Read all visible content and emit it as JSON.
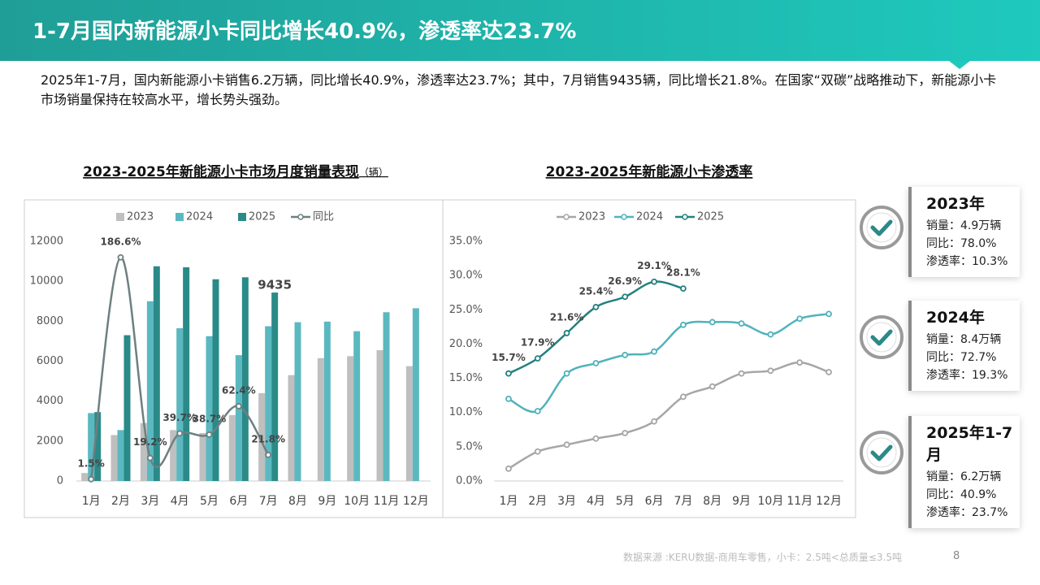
{
  "header": {
    "title": "1-7月国内新能源小卡同比增长40.9%，渗透率达23.7%"
  },
  "summary": "2025年1-7月，国内新能源小卡销售6.2万辆，同比增长40.9%，渗透率达23.7%；其中，7月销售9435辆，同比增长21.8%。在国家“双碳”战略推动下，新能源小卡市场销量保持在较高水平，增长势头强劲。",
  "chart_data": [
    {
      "type": "bar",
      "title": "2023-2025年新能源小卡市场月度销量表现",
      "subtitle": "（辆）",
      "categories": [
        "1月",
        "2月",
        "3月",
        "4月",
        "5月",
        "6月",
        "7月",
        "8月",
        "9月",
        "10月",
        "11月",
        "12月"
      ],
      "series": [
        {
          "name": "2023",
          "color": "#bfbfbf",
          "values": [
            400,
            2300,
            2900,
            2550,
            2400,
            3300,
            4400,
            5300,
            6150,
            6250,
            6550,
            5750
          ]
        },
        {
          "name": "2024",
          "color": "#5bb8c0",
          "values": [
            3400,
            2550,
            9000,
            7650,
            7250,
            6300,
            7750,
            7950,
            7980,
            7500,
            8450,
            8650
          ]
        },
        {
          "name": "2025",
          "color": "#2a8a88",
          "values": [
            3450,
            7300,
            10750,
            10700,
            10100,
            10200,
            9435,
            null,
            null,
            null,
            null,
            null
          ]
        },
        {
          "name": "同比",
          "color": "#6e7f80",
          "type": "line",
          "axis": "y2",
          "values": [
            1.5,
            186.6,
            19.2,
            39.7,
            38.7,
            62.4,
            21.8,
            null,
            null,
            null,
            null,
            null
          ],
          "value_labels": [
            "1.5%",
            "186.6%",
            "19.2%",
            "39.7%",
            "38.7%",
            "62.4%",
            "21.8%",
            null,
            null,
            null,
            null,
            null
          ]
        }
      ],
      "ylim": [
        0,
        12000
      ],
      "yticks": [
        0,
        2000,
        4000,
        6000,
        8000,
        10000,
        12000
      ],
      "y2lim": [
        0,
        200
      ],
      "grid": false
    },
    {
      "type": "line",
      "title": "2023-2025年新能源小卡渗透率",
      "categories": [
        "1月",
        "2月",
        "3月",
        "4月",
        "5月",
        "6月",
        "7月",
        "8月",
        "9月",
        "10月",
        "11月",
        "12月"
      ],
      "series": [
        {
          "name": "2023",
          "color": "#a6a6a6",
          "values": [
            1.8,
            4.3,
            5.3,
            6.2,
            7.0,
            8.7,
            12.3,
            13.8,
            15.7,
            16.1,
            17.3,
            15.9
          ]
        },
        {
          "name": "2024",
          "color": "#4fb3bb",
          "values": [
            12.0,
            10.2,
            15.7,
            17.2,
            18.4,
            18.9,
            22.8,
            23.2,
            23.0,
            21.4,
            23.7,
            24.4
          ]
        },
        {
          "name": "2025",
          "color": "#23817f",
          "values": [
            15.7,
            17.9,
            21.6,
            25.4,
            26.9,
            29.1,
            28.1,
            null,
            null,
            null,
            null,
            null
          ],
          "value_labels": [
            "15.7%",
            "17.9%",
            "21.6%",
            "25.4%",
            "26.9%",
            "29.1%",
            "28.1%",
            null,
            null,
            null,
            null,
            null
          ]
        }
      ],
      "ylim": [
        0,
        35
      ],
      "yticks": [
        {
          "value": 0,
          "label": "0.0%"
        },
        {
          "value": 5,
          "label": "5.0%"
        },
        {
          "value": 10,
          "label": "10.0%"
        },
        {
          "value": 15,
          "label": "15.0%"
        },
        {
          "value": 20,
          "label": "20.0%"
        },
        {
          "value": 25,
          "label": "25.0%"
        },
        {
          "value": 30,
          "label": "30.0%"
        },
        {
          "value": 35,
          "label": "35.0%"
        }
      ],
      "grid": false
    }
  ],
  "cards": [
    {
      "title": "2023年",
      "lines": [
        "销量：4.9万辆",
        "同比：78.0%",
        "渗透率：10.3%"
      ]
    },
    {
      "title": "2024年",
      "lines": [
        "销量：8.4万辆",
        "同比：72.7%",
        "渗透率：19.3%"
      ]
    },
    {
      "title": "2025年1-7月",
      "lines": [
        "销量：6.2万辆",
        "同比：40.9%",
        "渗透率：23.7%"
      ]
    }
  ],
  "footer": {
    "source": "数据来源 :KERU数据-商用车零售，小卡：2.5吨<总质量≤3.5吨",
    "page": "8"
  }
}
